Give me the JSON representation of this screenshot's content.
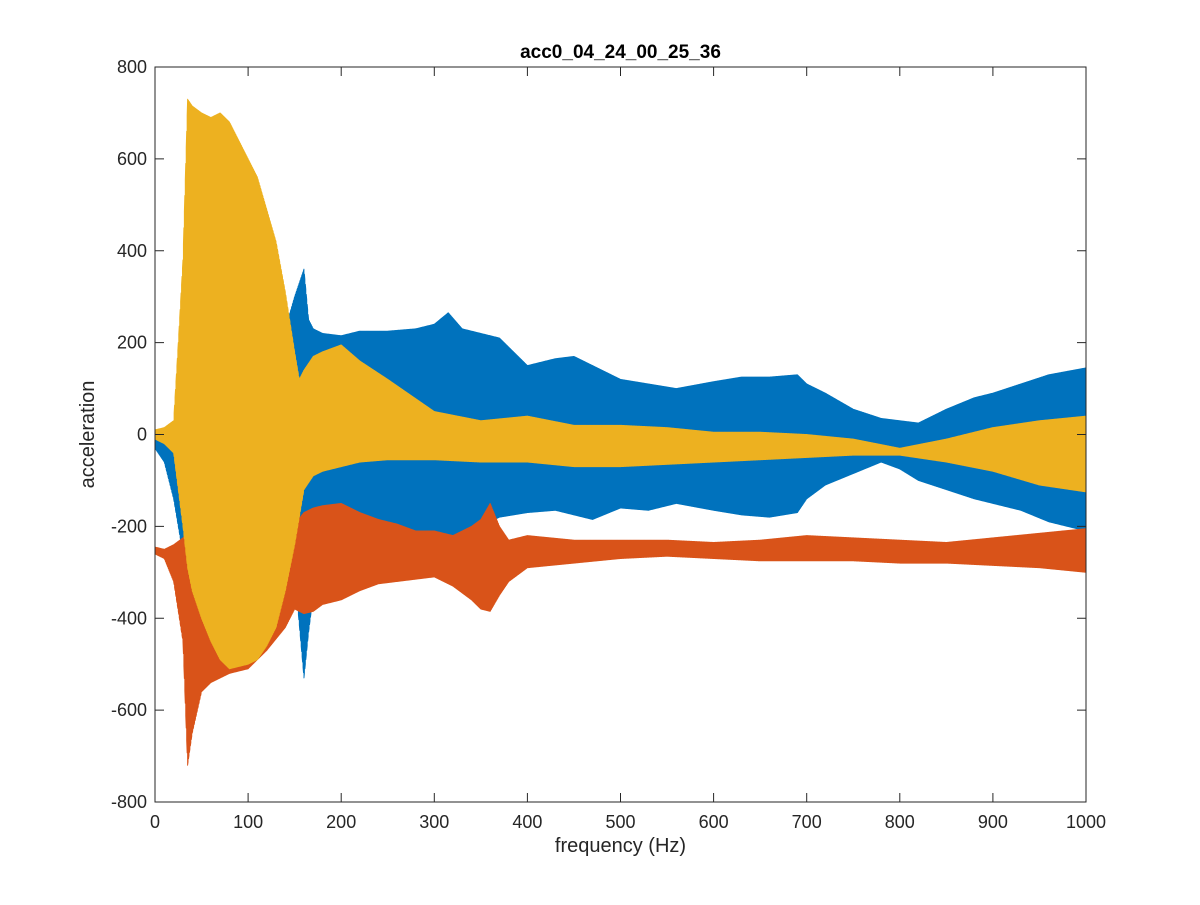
{
  "chart_data": {
    "type": "line",
    "title": "acc0_04_24_00_25_36",
    "xlabel": "frequency (Hz)",
    "ylabel": "acceleration",
    "xlim": [
      0,
      1000
    ],
    "ylim": [
      -800,
      800
    ],
    "xticks": [
      0,
      100,
      200,
      300,
      400,
      500,
      600,
      700,
      800,
      900,
      1000
    ],
    "yticks": [
      -800,
      -600,
      -400,
      -200,
      0,
      200,
      400,
      600,
      800
    ],
    "grid": false,
    "legend": "none",
    "series": [
      {
        "color": "#0072BD",
        "envelope": {
          "x": [
            0,
            10,
            20,
            30,
            40,
            60,
            80,
            100,
            120,
            140,
            150,
            160,
            165,
            170,
            180,
            200,
            220,
            250,
            280,
            300,
            315,
            330,
            350,
            370,
            400,
            430,
            450,
            470,
            500,
            530,
            560,
            600,
            630,
            660,
            690,
            700,
            720,
            750,
            780,
            800,
            820,
            850,
            880,
            900,
            930,
            960,
            1000
          ],
          "upper": [
            -10,
            -5,
            10,
            40,
            60,
            80,
            80,
            100,
            180,
            230,
            300,
            360,
            250,
            230,
            220,
            215,
            225,
            225,
            230,
            240,
            265,
            230,
            220,
            210,
            150,
            165,
            170,
            150,
            120,
            110,
            100,
            115,
            125,
            125,
            130,
            110,
            90,
            55,
            35,
            30,
            25,
            55,
            80,
            90,
            110,
            130,
            145
          ],
          "lower": [
            -30,
            -60,
            -140,
            -260,
            -380,
            -450,
            -480,
            -480,
            -420,
            -350,
            -300,
            -530,
            -430,
            -350,
            -250,
            -190,
            -200,
            -210,
            -215,
            -210,
            -220,
            -215,
            -200,
            -180,
            -170,
            -165,
            -175,
            -185,
            -160,
            -165,
            -150,
            -165,
            -175,
            -180,
            -170,
            -140,
            -110,
            -85,
            -60,
            -75,
            -100,
            -120,
            -140,
            -150,
            -165,
            -190,
            -210
          ]
        }
      },
      {
        "color": "#D95319",
        "envelope": {
          "x": [
            0,
            10,
            20,
            30,
            35,
            40,
            50,
            60,
            80,
            100,
            120,
            140,
            150,
            160,
            170,
            180,
            200,
            220,
            240,
            260,
            280,
            300,
            320,
            340,
            350,
            360,
            370,
            380,
            400,
            450,
            500,
            550,
            600,
            650,
            700,
            750,
            800,
            850,
            900,
            950,
            1000
          ],
          "upper": [
            -245,
            -250,
            -240,
            -225,
            -215,
            -200,
            -180,
            -170,
            -160,
            -175,
            -190,
            -210,
            -195,
            -170,
            -160,
            -155,
            -150,
            -170,
            -185,
            -195,
            -210,
            -210,
            -220,
            -200,
            -185,
            -150,
            -200,
            -230,
            -220,
            -230,
            -230,
            -230,
            -235,
            -230,
            -220,
            -225,
            -230,
            -235,
            -225,
            -215,
            -205
          ],
          "lower": [
            -260,
            -270,
            -320,
            -450,
            -720,
            -650,
            -560,
            -540,
            -520,
            -510,
            -470,
            -420,
            -380,
            -390,
            -385,
            -370,
            -360,
            -340,
            -325,
            -320,
            -315,
            -310,
            -330,
            -360,
            -380,
            -385,
            -350,
            -320,
            -290,
            -280,
            -270,
            -265,
            -270,
            -275,
            -275,
            -275,
            -280,
            -280,
            -285,
            -290,
            -300
          ]
        }
      },
      {
        "color": "#EDB120",
        "envelope": {
          "x": [
            0,
            10,
            20,
            25,
            30,
            35,
            40,
            50,
            60,
            70,
            80,
            100,
            110,
            120,
            130,
            140,
            150,
            155,
            160,
            170,
            180,
            200,
            220,
            250,
            300,
            350,
            400,
            450,
            500,
            550,
            600,
            650,
            700,
            750,
            800,
            850,
            900,
            950,
            1000
          ],
          "upper": [
            10,
            15,
            30,
            200,
            380,
            730,
            715,
            700,
            690,
            700,
            680,
            600,
            560,
            490,
            420,
            310,
            180,
            120,
            140,
            170,
            180,
            195,
            160,
            120,
            50,
            30,
            40,
            20,
            20,
            15,
            5,
            5,
            0,
            -10,
            -30,
            -10,
            15,
            30,
            40
          ],
          "lower": [
            -10,
            -20,
            -40,
            -120,
            -200,
            -290,
            -340,
            -400,
            -450,
            -490,
            -510,
            -500,
            -490,
            -460,
            -420,
            -340,
            -240,
            -180,
            -120,
            -90,
            -80,
            -70,
            -60,
            -55,
            -55,
            -60,
            -60,
            -70,
            -70,
            -65,
            -60,
            -55,
            -50,
            -45,
            -45,
            -60,
            -80,
            -110,
            -125
          ]
        }
      }
    ]
  }
}
